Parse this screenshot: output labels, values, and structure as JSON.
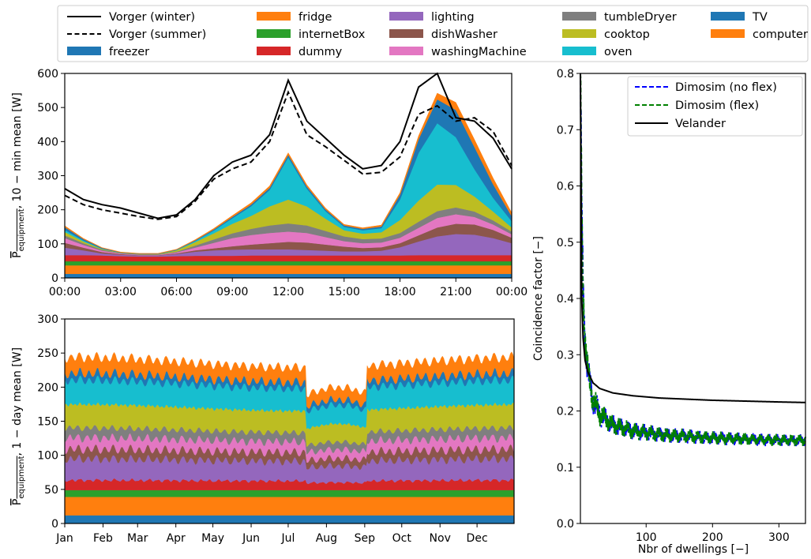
{
  "colors": {
    "freezer": "#1f77b4",
    "fridge": "#ff7f0e",
    "internetBox": "#2ca02c",
    "dummy": "#d62728",
    "lighting": "#9467bd",
    "dishWasher": "#8c564b",
    "washingMachine": "#e377c2",
    "tumbleDryer": "#7f7f7f",
    "cooktop": "#bcbd22",
    "oven": "#17becf",
    "TV": "#1f77b4",
    "computer": "#ff7f0e",
    "dimosim_noflex": "#0000ff",
    "dimosim_flex": "#008000",
    "velander": "#000000"
  },
  "legend": {
    "entries": [
      {
        "label": "Vorger (winter)",
        "style": "solid-line",
        "color": "#000000"
      },
      {
        "label": "Vorger (summer)",
        "style": "dashed-line",
        "color": "#000000"
      },
      {
        "label": "freezer",
        "style": "patch",
        "color": "#1f77b4"
      },
      {
        "label": "fridge",
        "style": "patch",
        "color": "#ff7f0e"
      },
      {
        "label": "internetBox",
        "style": "patch",
        "color": "#2ca02c"
      },
      {
        "label": "dummy",
        "style": "patch",
        "color": "#d62728"
      },
      {
        "label": "lighting",
        "style": "patch",
        "color": "#9467bd"
      },
      {
        "label": "dishWasher",
        "style": "patch",
        "color": "#8c564b"
      },
      {
        "label": "washingMachine",
        "style": "patch",
        "color": "#e377c2"
      },
      {
        "label": "tumbleDryer",
        "style": "patch",
        "color": "#7f7f7f"
      },
      {
        "label": "cooktop",
        "style": "patch",
        "color": "#bcbd22"
      },
      {
        "label": "oven",
        "style": "patch",
        "color": "#17becf"
      },
      {
        "label": "TV",
        "style": "patch",
        "color": "#1f77b4"
      },
      {
        "label": "computer",
        "style": "patch",
        "color": "#ff7f0e"
      }
    ]
  },
  "chart_data": [
    {
      "type": "area",
      "stacked": true,
      "ylabel_main": "P",
      "ylabel_sub": "equipment",
      "ylabel_rest": ", 10 − min mean  [W]",
      "ylim": [
        0,
        600
      ],
      "yticks": [
        "0",
        "100",
        "200",
        "300",
        "400",
        "500",
        "600"
      ],
      "xticks": [
        "00:00",
        "03:00",
        "06:00",
        "09:00",
        "12:00",
        "15:00",
        "18:00",
        "21:00",
        "00:00"
      ],
      "x": [
        "00:00",
        "01:00",
        "02:00",
        "03:00",
        "04:00",
        "05:00",
        "06:00",
        "07:00",
        "08:00",
        "09:00",
        "10:00",
        "11:00",
        "12:00",
        "13:00",
        "14:00",
        "15:00",
        "16:00",
        "17:00",
        "18:00",
        "19:00",
        "20:00",
        "21:00",
        "22:00",
        "23:00",
        "24:00"
      ],
      "series": [
        {
          "name": "freezer",
          "values": [
            12,
            12,
            12,
            12,
            12,
            12,
            12,
            12,
            12,
            12,
            12,
            12,
            12,
            12,
            12,
            12,
            12,
            12,
            12,
            12,
            12,
            12,
            12,
            12,
            12
          ]
        },
        {
          "name": "fridge",
          "values": [
            25,
            25,
            25,
            25,
            25,
            25,
            25,
            25,
            25,
            25,
            25,
            25,
            25,
            25,
            25,
            25,
            25,
            25,
            25,
            25,
            25,
            25,
            25,
            25,
            25
          ]
        },
        {
          "name": "internetBox",
          "values": [
            12,
            12,
            12,
            12,
            12,
            12,
            12,
            12,
            12,
            12,
            12,
            12,
            12,
            12,
            12,
            12,
            12,
            12,
            12,
            12,
            12,
            12,
            12,
            12,
            12
          ]
        },
        {
          "name": "dummy",
          "values": [
            18,
            18,
            17,
            15,
            14,
            14,
            15,
            16,
            16,
            16,
            17,
            17,
            17,
            17,
            17,
            17,
            17,
            17,
            17,
            18,
            18,
            18,
            18,
            18,
            18
          ]
        },
        {
          "name": "lighting",
          "values": [
            22,
            14,
            6,
            4,
            3,
            3,
            6,
            12,
            16,
            18,
            18,
            18,
            18,
            16,
            14,
            12,
            12,
            14,
            24,
            40,
            55,
            62,
            60,
            50,
            35
          ]
        },
        {
          "name": "dishWasher",
          "values": [
            14,
            8,
            4,
            2,
            1,
            1,
            2,
            4,
            6,
            10,
            14,
            18,
            22,
            22,
            18,
            14,
            10,
            10,
            12,
            18,
            26,
            30,
            30,
            24,
            16
          ]
        },
        {
          "name": "washingMachine",
          "values": [
            14,
            8,
            4,
            2,
            1,
            1,
            3,
            8,
            16,
            24,
            28,
            30,
            30,
            28,
            22,
            16,
            14,
            14,
            16,
            22,
            28,
            28,
            22,
            16,
            10
          ]
        },
        {
          "name": "tumbleDryer",
          "values": [
            8,
            5,
            3,
            1,
            1,
            1,
            2,
            6,
            10,
            14,
            18,
            22,
            24,
            22,
            18,
            14,
            12,
            12,
            14,
            18,
            20,
            20,
            16,
            12,
            8
          ]
        },
        {
          "name": "cooktop",
          "values": [
            10,
            5,
            2,
            1,
            1,
            1,
            4,
            10,
            18,
            28,
            38,
            56,
            70,
            56,
            36,
            18,
            16,
            18,
            38,
            62,
            78,
            66,
            44,
            26,
            12
          ]
        },
        {
          "name": "oven",
          "values": [
            6,
            3,
            1,
            0,
            0,
            0,
            1,
            3,
            8,
            16,
            28,
            48,
            124,
            52,
            22,
            10,
            10,
            12,
            60,
            140,
            180,
            140,
            80,
            40,
            18
          ]
        },
        {
          "name": "TV",
          "values": [
            8,
            4,
            2,
            1,
            1,
            1,
            1,
            2,
            3,
            4,
            5,
            6,
            7,
            6,
            5,
            4,
            4,
            5,
            14,
            40,
            70,
            80,
            65,
            40,
            15
          ]
        },
        {
          "name": "computer",
          "values": [
            4,
            2,
            1,
            1,
            1,
            1,
            1,
            2,
            3,
            4,
            5,
            6,
            6,
            5,
            4,
            3,
            3,
            4,
            6,
            10,
            18,
            22,
            22,
            18,
            10
          ]
        }
      ],
      "lines": [
        {
          "name": "Vorger (winter)",
          "values": [
            262,
            230,
            215,
            205,
            190,
            175,
            185,
            230,
            300,
            340,
            360,
            420,
            580,
            460,
            410,
            360,
            320,
            330,
            400,
            560,
            600,
            470,
            460,
            410,
            320
          ]
        },
        {
          "name": "Vorger (summer)",
          "values": [
            242,
            215,
            200,
            190,
            180,
            172,
            180,
            225,
            290,
            320,
            340,
            400,
            545,
            420,
            385,
            345,
            305,
            310,
            355,
            480,
            505,
            460,
            470,
            430,
            330
          ]
        }
      ]
    },
    {
      "type": "area",
      "stacked": true,
      "ylabel_main": "P",
      "ylabel_sub": "equipment",
      "ylabel_rest": ", 1 − day mean  [W]",
      "ylim": [
        0,
        300
      ],
      "yticks": [
        "0",
        "50",
        "100",
        "150",
        "200",
        "250",
        "300"
      ],
      "xticks": [
        "Jan",
        "Feb",
        "Mar",
        "Apr",
        "May",
        "Jun",
        "Jul",
        "Aug",
        "Sep",
        "Oct",
        "Nov",
        "Dec"
      ],
      "days": 365,
      "series": [
        {
          "name": "freezer",
          "values": [
            12
          ]
        },
        {
          "name": "fridge",
          "values": [
            27
          ]
        },
        {
          "name": "internetBox",
          "values": [
            10
          ]
        },
        {
          "name": "dummy",
          "values": [
            14
          ]
        },
        {
          "name": "lighting",
          "values": [
            30
          ]
        },
        {
          "name": "dishWasher",
          "values": [
            14
          ]
        },
        {
          "name": "washingMachine",
          "values": [
            16
          ]
        },
        {
          "name": "tumbleDryer",
          "values": [
            14
          ]
        },
        {
          "name": "cooktop",
          "values": [
            33
          ]
        },
        {
          "name": "oven",
          "values": [
            34
          ]
        },
        {
          "name": "TV",
          "values": [
            10
          ]
        },
        {
          "name": "computer",
          "values": [
            22
          ]
        }
      ]
    },
    {
      "type": "line",
      "xlabel": "Nbr of dwellings  [−]",
      "ylabel": "Coincidence factor  [−]",
      "xlim": [
        1,
        340
      ],
      "ylim": [
        0.0,
        0.8
      ],
      "xticks": [
        100,
        200,
        300
      ],
      "xtick_labels": [
        "100",
        "200",
        "300"
      ],
      "yticks": [
        0.0,
        0.1,
        0.2,
        0.3,
        0.4,
        0.5,
        0.6,
        0.7,
        0.8
      ],
      "ytick_labels": [
        "0.0",
        "0.1",
        "0.2",
        "0.3",
        "0.4",
        "0.5",
        "0.6",
        "0.7",
        "0.8"
      ],
      "legend": [
        "Dimosim (no flex)",
        "Dimosim (flex)",
        "Velander"
      ],
      "series": [
        {
          "name": "Dimosim (no flex)",
          "style": "dashed",
          "x": [
            1,
            3,
            5,
            8,
            12,
            20,
            30,
            50,
            80,
            120,
            200,
            300,
            340
          ],
          "values": [
            0.8,
            0.55,
            0.42,
            0.33,
            0.27,
            0.22,
            0.195,
            0.175,
            0.165,
            0.158,
            0.152,
            0.148,
            0.148
          ]
        },
        {
          "name": "Dimosim (flex)",
          "style": "dashed",
          "x": [
            1,
            3,
            5,
            8,
            12,
            20,
            30,
            50,
            80,
            120,
            200,
            300,
            340
          ],
          "values": [
            0.8,
            0.55,
            0.42,
            0.33,
            0.27,
            0.22,
            0.195,
            0.175,
            0.165,
            0.158,
            0.152,
            0.148,
            0.148
          ]
        },
        {
          "name": "Velander",
          "style": "solid",
          "x": [
            1,
            3,
            5,
            8,
            12,
            20,
            30,
            50,
            80,
            120,
            200,
            300,
            340
          ],
          "values": [
            0.8,
            0.4,
            0.33,
            0.29,
            0.27,
            0.25,
            0.24,
            0.232,
            0.227,
            0.223,
            0.219,
            0.216,
            0.215
          ]
        }
      ]
    }
  ]
}
